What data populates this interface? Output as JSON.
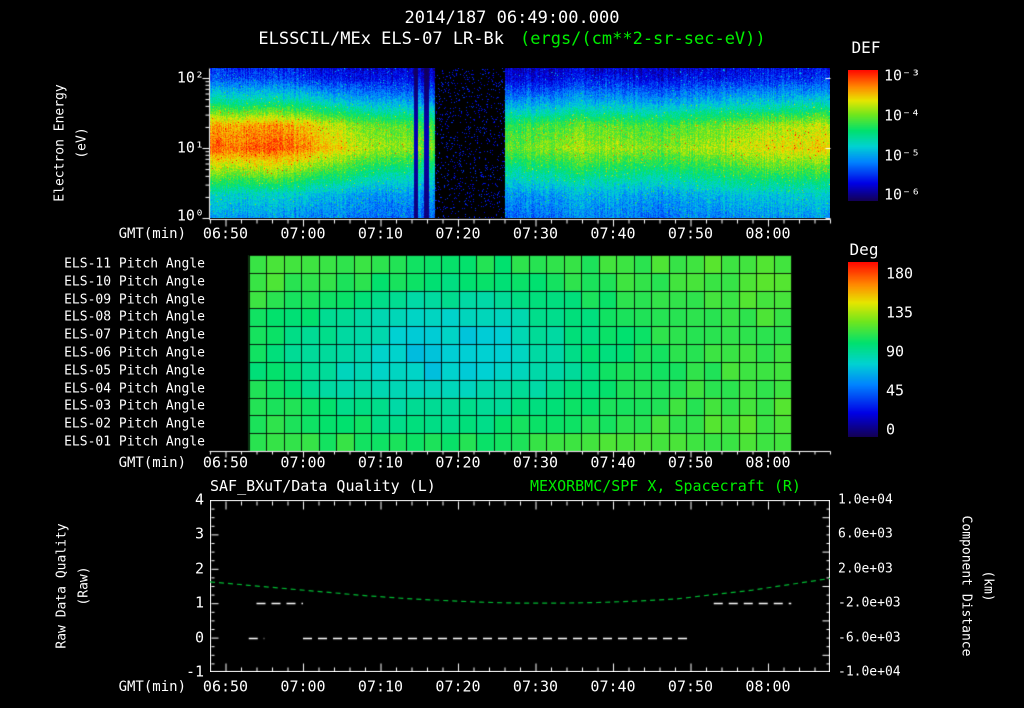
{
  "header": {
    "timestamp": "2014/187 06:49:00.000",
    "instrument": "ELSSCIL/MEx ELS-07 LR-Bk",
    "units": "(ergs/(cm**2-sr-sec-eV))"
  },
  "colors": {
    "background": "#000000",
    "text": "#ffffff",
    "accent_green": "#00ee00",
    "curve_green": "#00bb33"
  },
  "time_axis": {
    "label": "GMT(min)",
    "start": "06:48",
    "end": "08:08",
    "total_minutes": 80,
    "tick_minutes": [
      2,
      12,
      22,
      32,
      42,
      52,
      62,
      72
    ],
    "tick_labels": [
      "06:50",
      "07:00",
      "07:10",
      "07:20",
      "07:30",
      "07:40",
      "07:50",
      "08:00"
    ],
    "minor_tick_step_min": 2
  },
  "spectrogram_panel": {
    "ylabel_line1": "Electron Energy",
    "ylabel_line2": "(eV)",
    "ytick_labels": [
      "10²",
      "10¹",
      "10⁰"
    ],
    "colorbar_title": "DEF",
    "colorbar_tick_labels": [
      "10⁻³",
      "10⁻⁴",
      "10⁻⁵",
      "10⁻⁶"
    ]
  },
  "pitch_panel": {
    "row_labels": [
      "ELS-11 Pitch Angle",
      "ELS-10 Pitch Angle",
      "ELS-09 Pitch Angle",
      "ELS-08 Pitch Angle",
      "ELS-07 Pitch Angle",
      "ELS-06 Pitch Angle",
      "ELS-05 Pitch Angle",
      "ELS-04 Pitch Angle",
      "ELS-03 Pitch Angle",
      "ELS-02 Pitch Angle",
      "ELS-01 Pitch Angle"
    ],
    "colorbar_title": "Deg",
    "colorbar_tick_labels": [
      "180",
      "135",
      "90",
      "45",
      "0"
    ]
  },
  "line_panel": {
    "title_left": "SAF_BXuT/Data Quality (L)",
    "title_right": "MEXORBMC/SPF X, Spacecraft (R)",
    "ylabel_left_line1": "Raw Data Quality",
    "ylabel_left_line2": "(Raw)",
    "ylabel_right_line1": "Component Distance",
    "ylabel_right_line2": "(km)",
    "ytick_labels_left": [
      "4",
      "3",
      "2",
      "1",
      "0",
      "-1"
    ],
    "ytick_labels_right": [
      "1.0e+04",
      "6.0e+03",
      "2.0e+03",
      "-2.0e+03",
      "-6.0e+03",
      "-1.0e+04"
    ]
  },
  "chart_data": [
    {
      "type": "heatmap",
      "title": "ELSSCIL/MEx ELS-07 LR-Bk electron energy spectrogram",
      "xlabel": "GMT(min)",
      "ylabel": "Electron Energy (eV)",
      "x_start": "06:48",
      "x_end": "08:08",
      "x_bin_centers_min": [
        2.5,
        7.5,
        12.5,
        17.5,
        22.5,
        27.5,
        32.5,
        37.5,
        42.5,
        47.5,
        52.5,
        57.5,
        62.5,
        67.5,
        72.5,
        77.5
      ],
      "energy_bins_eV": [
        1.0,
        2.2,
        4.6,
        10.0,
        21.5,
        46.4,
        100.0,
        215.0
      ],
      "values_log10_def": [
        [
          -5.0,
          -5.0,
          -5.1,
          -5.1,
          -5.2,
          -5.2,
          -5.2,
          -5.2,
          -5.2,
          -5.1,
          -5.1,
          -5.2,
          -5.1,
          -5.1,
          -5.0,
          -5.0
        ],
        [
          -4.7,
          -4.7,
          -4.8,
          -4.9,
          -5.0,
          -5.0,
          -5.0,
          -5.0,
          -5.0,
          -4.9,
          -4.9,
          -5.0,
          -4.9,
          -4.8,
          -4.8,
          -4.7
        ],
        [
          -4.0,
          -3.9,
          -4.1,
          -4.3,
          -4.5,
          -4.6,
          -4.6,
          -4.6,
          -4.5,
          -4.4,
          -4.4,
          -4.5,
          -4.4,
          -4.3,
          -4.2,
          -4.2
        ],
        [
          -3.3,
          -3.2,
          -3.4,
          -3.7,
          -3.9,
          -4.0,
          -4.0,
          -4.1,
          -4.0,
          -3.9,
          -3.9,
          -4.0,
          -3.9,
          -3.8,
          -3.7,
          -3.6
        ],
        [
          -3.5,
          -3.4,
          -3.6,
          -3.9,
          -4.1,
          -4.2,
          -4.2,
          -4.3,
          -4.2,
          -4.1,
          -4.1,
          -4.2,
          -4.1,
          -4.0,
          -3.9,
          -3.8
        ],
        [
          -4.5,
          -4.5,
          -4.6,
          -4.8,
          -4.9,
          -5.0,
          -5.0,
          -5.0,
          -5.0,
          -4.9,
          -4.9,
          -5.0,
          -4.9,
          -4.8,
          -4.8,
          -4.7
        ],
        [
          -5.3,
          -5.3,
          -5.4,
          -5.5,
          -5.5,
          -5.6,
          -5.6,
          -5.6,
          -5.6,
          -5.5,
          -5.5,
          -5.6,
          -5.5,
          -5.5,
          -5.4,
          -5.4
        ],
        [
          -5.6,
          -5.6,
          -5.7,
          -5.7,
          -5.8,
          -5.8,
          -5.8,
          -5.8,
          -5.8,
          -5.8,
          -5.8,
          -5.8,
          -5.8,
          -5.7,
          -5.7,
          -5.6
        ]
      ],
      "data_gap": {
        "from_min": 29,
        "to_min": 38
      },
      "narrow_dropouts_min": [
        [
          26.2,
          26.8
        ],
        [
          27.6,
          28.2
        ]
      ],
      "scale": {
        "min_log10": -6,
        "max_log10": -3,
        "units": "ergs/(cm**2-sr-sec-eV)",
        "label": "DEF"
      }
    },
    {
      "type": "heatmap",
      "title": "ELS anode pitch angles",
      "rows": [
        "ELS-11",
        "ELS-10",
        "ELS-09",
        "ELS-08",
        "ELS-07",
        "ELS-06",
        "ELS-05",
        "ELS-04",
        "ELS-03",
        "ELS-02",
        "ELS-01"
      ],
      "x_bin_centers_min": [
        2.5,
        7.5,
        12.5,
        17.5,
        22.5,
        27.5,
        32.5,
        37.5,
        42.5,
        47.5,
        52.5,
        57.5,
        62.5,
        67.5,
        72.5,
        77.5
      ],
      "coverage_min": [
        5,
        75
      ],
      "columns_displayed": 31,
      "values_deg": [
        [
          113,
          112,
          110,
          108,
          105,
          103,
          101,
          101,
          103,
          106,
          108,
          110,
          111,
          112,
          112,
          113
        ],
        [
          111,
          110,
          107,
          104,
          100,
          97,
          95,
          96,
          99,
          103,
          106,
          108,
          110,
          111,
          112,
          112
        ],
        [
          108,
          106,
          102,
          97,
          92,
          88,
          86,
          88,
          93,
          98,
          103,
          106,
          108,
          110,
          111,
          112
        ],
        [
          106,
          102,
          96,
          90,
          84,
          80,
          78,
          81,
          88,
          94,
          100,
          104,
          107,
          109,
          110,
          111
        ],
        [
          104,
          99,
          92,
          85,
          79,
          75,
          74,
          78,
          85,
          92,
          98,
          103,
          106,
          108,
          109,
          110
        ],
        [
          103,
          97,
          89,
          82,
          76,
          72,
          72,
          77,
          84,
          91,
          98,
          102,
          106,
          108,
          109,
          110
        ],
        [
          103,
          97,
          90,
          83,
          77,
          74,
          74,
          79,
          85,
          92,
          98,
          103,
          106,
          108,
          109,
          110
        ],
        [
          104,
          100,
          93,
          87,
          82,
          79,
          80,
          84,
          89,
          95,
          100,
          104,
          107,
          109,
          110,
          110
        ],
        [
          106,
          103,
          98,
          93,
          89,
          86,
          87,
          90,
          94,
          99,
          103,
          106,
          108,
          110,
          110,
          111
        ],
        [
          108,
          105,
          102,
          98,
          95,
          93,
          94,
          96,
          100,
          103,
          106,
          108,
          110,
          111,
          112,
          112
        ],
        [
          110,
          108,
          106,
          104,
          101,
          100,
          101,
          102,
          105,
          107,
          109,
          110,
          111,
          112,
          112,
          113
        ]
      ],
      "scale": {
        "min": 0,
        "max": 180,
        "units": "Deg"
      }
    },
    {
      "type": "line",
      "title_left": "SAF_BXuT/Data Quality (L)",
      "title_right": "MEXORBMC/SPF X, Spacecraft (R)",
      "left_axis": {
        "label": "Raw Data Quality (Raw)",
        "min": -1,
        "max": 4
      },
      "right_axis": {
        "label": "Component Distance (km)",
        "min": -10000,
        "max": 10000
      },
      "x_minutes_after_0648": [
        0,
        5,
        10,
        15,
        20,
        25,
        30,
        35,
        40,
        45,
        50,
        55,
        60,
        65,
        70,
        75,
        80
      ],
      "spacecraft_x_km": [
        480,
        80,
        -320,
        -720,
        -1120,
        -1440,
        -1680,
        -1880,
        -2000,
        -2000,
        -1920,
        -1760,
        -1520,
        -1000,
        -480,
        200,
        880
      ],
      "curve_color": "#00bb33",
      "curve_style": "dashed",
      "quality_segments": [
        {
          "level": 0,
          "from_min": 5,
          "to_min": 7
        },
        {
          "level": 1,
          "from_min": 6,
          "to_min": 12
        },
        {
          "level": 0,
          "from_min": 12,
          "to_min": 62
        },
        {
          "level": 1,
          "from_min": 65,
          "to_min": 75
        }
      ]
    }
  ]
}
